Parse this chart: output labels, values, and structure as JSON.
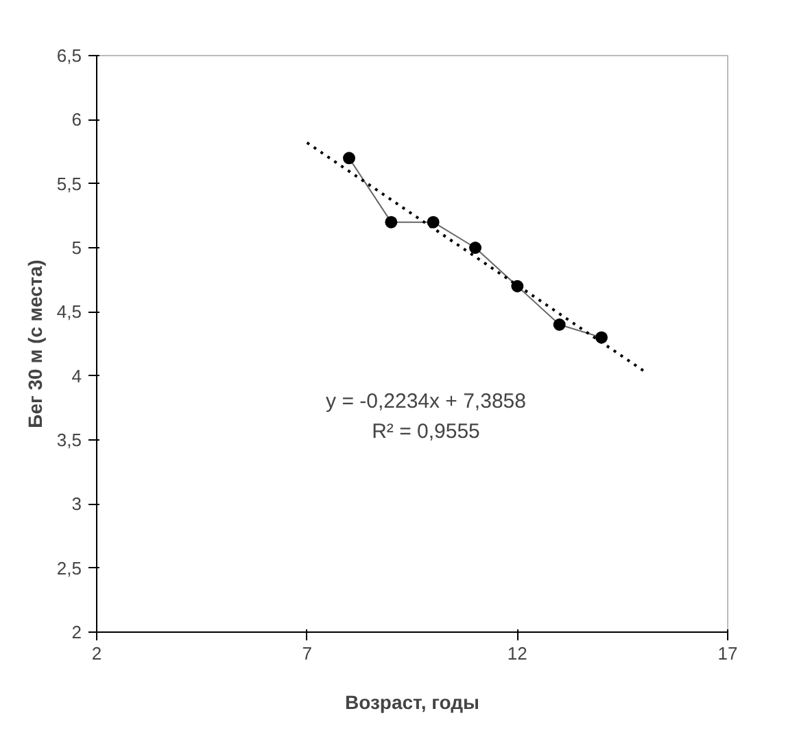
{
  "chart_data": {
    "type": "line",
    "xlabel": "Возраст, годы",
    "ylabel": "Бег 30 м (с места)",
    "x": [
      8,
      9,
      10,
      11,
      12,
      13,
      14
    ],
    "series": [
      {
        "color": "#000000",
        "values": [
          5.7,
          5.2,
          5.2,
          5.0,
          4.7,
          4.4,
          4.3
        ],
        "marker": "circle",
        "line_style": "solid"
      },
      {
        "type": "line",
        "x": [
          7,
          15
        ],
        "color": "#000000",
        "values": [
          5.82,
          4.04
        ],
        "marker": "none",
        "line_style": "dotted"
      }
    ],
    "xlim": [
      2,
      17
    ],
    "xticks": [
      2,
      7,
      12,
      17
    ],
    "ylim": [
      2,
      6.5
    ],
    "yticks": [
      2,
      {
        "value": 2.5,
        "label": "2,5"
      },
      3,
      {
        "value": 3.5,
        "label": "3,5"
      },
      4,
      {
        "value": 4.5,
        "label": "4,5"
      },
      5,
      {
        "value": 5.5,
        "label": "5,5"
      },
      6,
      {
        "value": 6.5,
        "label": "6,5"
      }
    ],
    "annotations": [
      "y = -0,2234x + 7,3858",
      "R² = 0,9555"
    ],
    "grid": false
  }
}
